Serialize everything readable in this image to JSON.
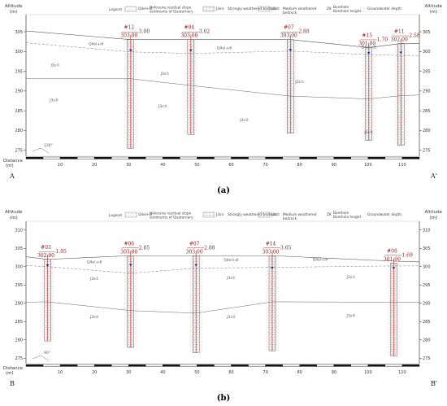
{
  "panels": [
    {
      "id": "a",
      "caption": "(a)",
      "y_axis_title": "Altitude",
      "y_axis_unit": "(m)",
      "y_ticks": [
        305,
        300,
        295,
        290,
        285,
        280,
        275
      ],
      "x_axis_title": "Distance",
      "x_axis_unit": "(m)",
      "x_ticks": [
        10,
        20,
        30,
        40,
        50,
        60,
        70,
        80,
        90,
        100,
        110
      ],
      "end_left": "A",
      "end_right": "A'",
      "angle_label": "130°",
      "boreholes": [
        {
          "id": "ZK12",
          "label": "#12",
          "elev": "303.00",
          "depth": "3.00",
          "x": 30.6
        },
        {
          "id": "ZK04",
          "label": "#04",
          "elev": "303.00",
          "depth": "3.02",
          "x": 48.2
        },
        {
          "id": "ZK07",
          "label": "#07",
          "elev": "303.00",
          "depth": "2.88",
          "x": 77.3
        },
        {
          "id": "ZK15",
          "label": "#15",
          "elev": "301.00",
          "depth": "1.70",
          "x": 100.2
        },
        {
          "id": "ZK11",
          "label": "#11",
          "elev": "302.00",
          "depth": "2.58",
          "x": 109.6
        }
      ],
      "layer_labels": [
        {
          "text": "Q4el+dl",
          "x": 20.5,
          "y": 301.6
        },
        {
          "text": "Q4el+dl",
          "x": 58.0,
          "y": 300.6
        },
        {
          "text": "Q4el+dl",
          "x": 100.2,
          "y": 300.8
        },
        {
          "text": "J3s①",
          "x": 8.5,
          "y": 296.2
        },
        {
          "text": "J3s①",
          "x": 40.6,
          "y": 294.1
        },
        {
          "text": "J3s①",
          "x": 80.0,
          "y": 292.0
        },
        {
          "text": "J3s②",
          "x": 8.2,
          "y": 287.4
        },
        {
          "text": "J3s②",
          "x": 40.0,
          "y": 285.9
        },
        {
          "text": "J3s②",
          "x": 63.8,
          "y": 282.4
        },
        {
          "text": "J3s②",
          "x": 100.2,
          "y": 279.3
        }
      ]
    },
    {
      "id": "b",
      "caption": "(b)",
      "y_axis_title": "Altitude",
      "y_axis_unit": "(m)",
      "y_ticks": [
        310,
        305,
        300,
        295,
        290,
        285,
        280,
        275
      ],
      "x_axis_title": "Distance",
      "x_axis_unit": "(m)",
      "x_ticks": [
        10,
        20,
        30,
        40,
        50,
        60,
        70,
        80,
        90,
        100,
        110
      ],
      "end_left": "B",
      "end_right": "B'",
      "angle_label": "90°",
      "boreholes": [
        {
          "id": "ZK03",
          "label": "#03",
          "elev": "302.00",
          "depth": "1.95",
          "x": 6.3
        },
        {
          "id": "ZK06",
          "label": "#06",
          "elev": "303.00",
          "depth": "2.85",
          "x": 30.6
        },
        {
          "id": "ZK07",
          "label": "#07",
          "elev": "303.00",
          "depth": "2.88",
          "x": 49.7
        },
        {
          "id": "ZK14",
          "label": "#14",
          "elev": "303.00",
          "depth": "3.65",
          "x": 72.0
        },
        {
          "id": "ZK08",
          "label": "#08",
          "elev": "301.00",
          "depth": "1.69",
          "x": 107.5
        }
      ],
      "layer_labels": [
        {
          "text": "Q4el+dl",
          "x": 20.0,
          "y": 300.9
        },
        {
          "text": "Q4el+dl",
          "x": 60.0,
          "y": 301.5
        },
        {
          "text": "Q4el+dl",
          "x": 86.0,
          "y": 301.6
        },
        {
          "text": "J3s①",
          "x": 20.0,
          "y": 296.4
        },
        {
          "text": "J3s①",
          "x": 60.0,
          "y": 296.6
        },
        {
          "text": "J3s①",
          "x": 95.0,
          "y": 296.8
        },
        {
          "text": "J3s②",
          "x": 20.0,
          "y": 285.9
        },
        {
          "text": "J3s②",
          "x": 60.0,
          "y": 286.0
        },
        {
          "text": "J3s②",
          "x": 95.0,
          "y": 286.3
        }
      ]
    }
  ],
  "legend": {
    "title": "Legend",
    "items": [
      {
        "symbol": "Q4el+dl",
        "text": "Holocene residual slope sediments of Quaternary"
      },
      {
        "symbol": "J3s①",
        "text": "Strongly weathered bedrock"
      },
      {
        "symbol": "J3s②",
        "text": "Medium weathered bedrock"
      },
      {
        "symbol": "ZK",
        "text": "Borehole / Borehole height"
      },
      {
        "symbol": "",
        "text": "Groundwater depth"
      }
    ]
  },
  "colors": {
    "borehole_line": "#c0504d",
    "borehole_text": "#8b1a1a",
    "hatch": "#e8a0a8",
    "water": "#1a237e"
  }
}
